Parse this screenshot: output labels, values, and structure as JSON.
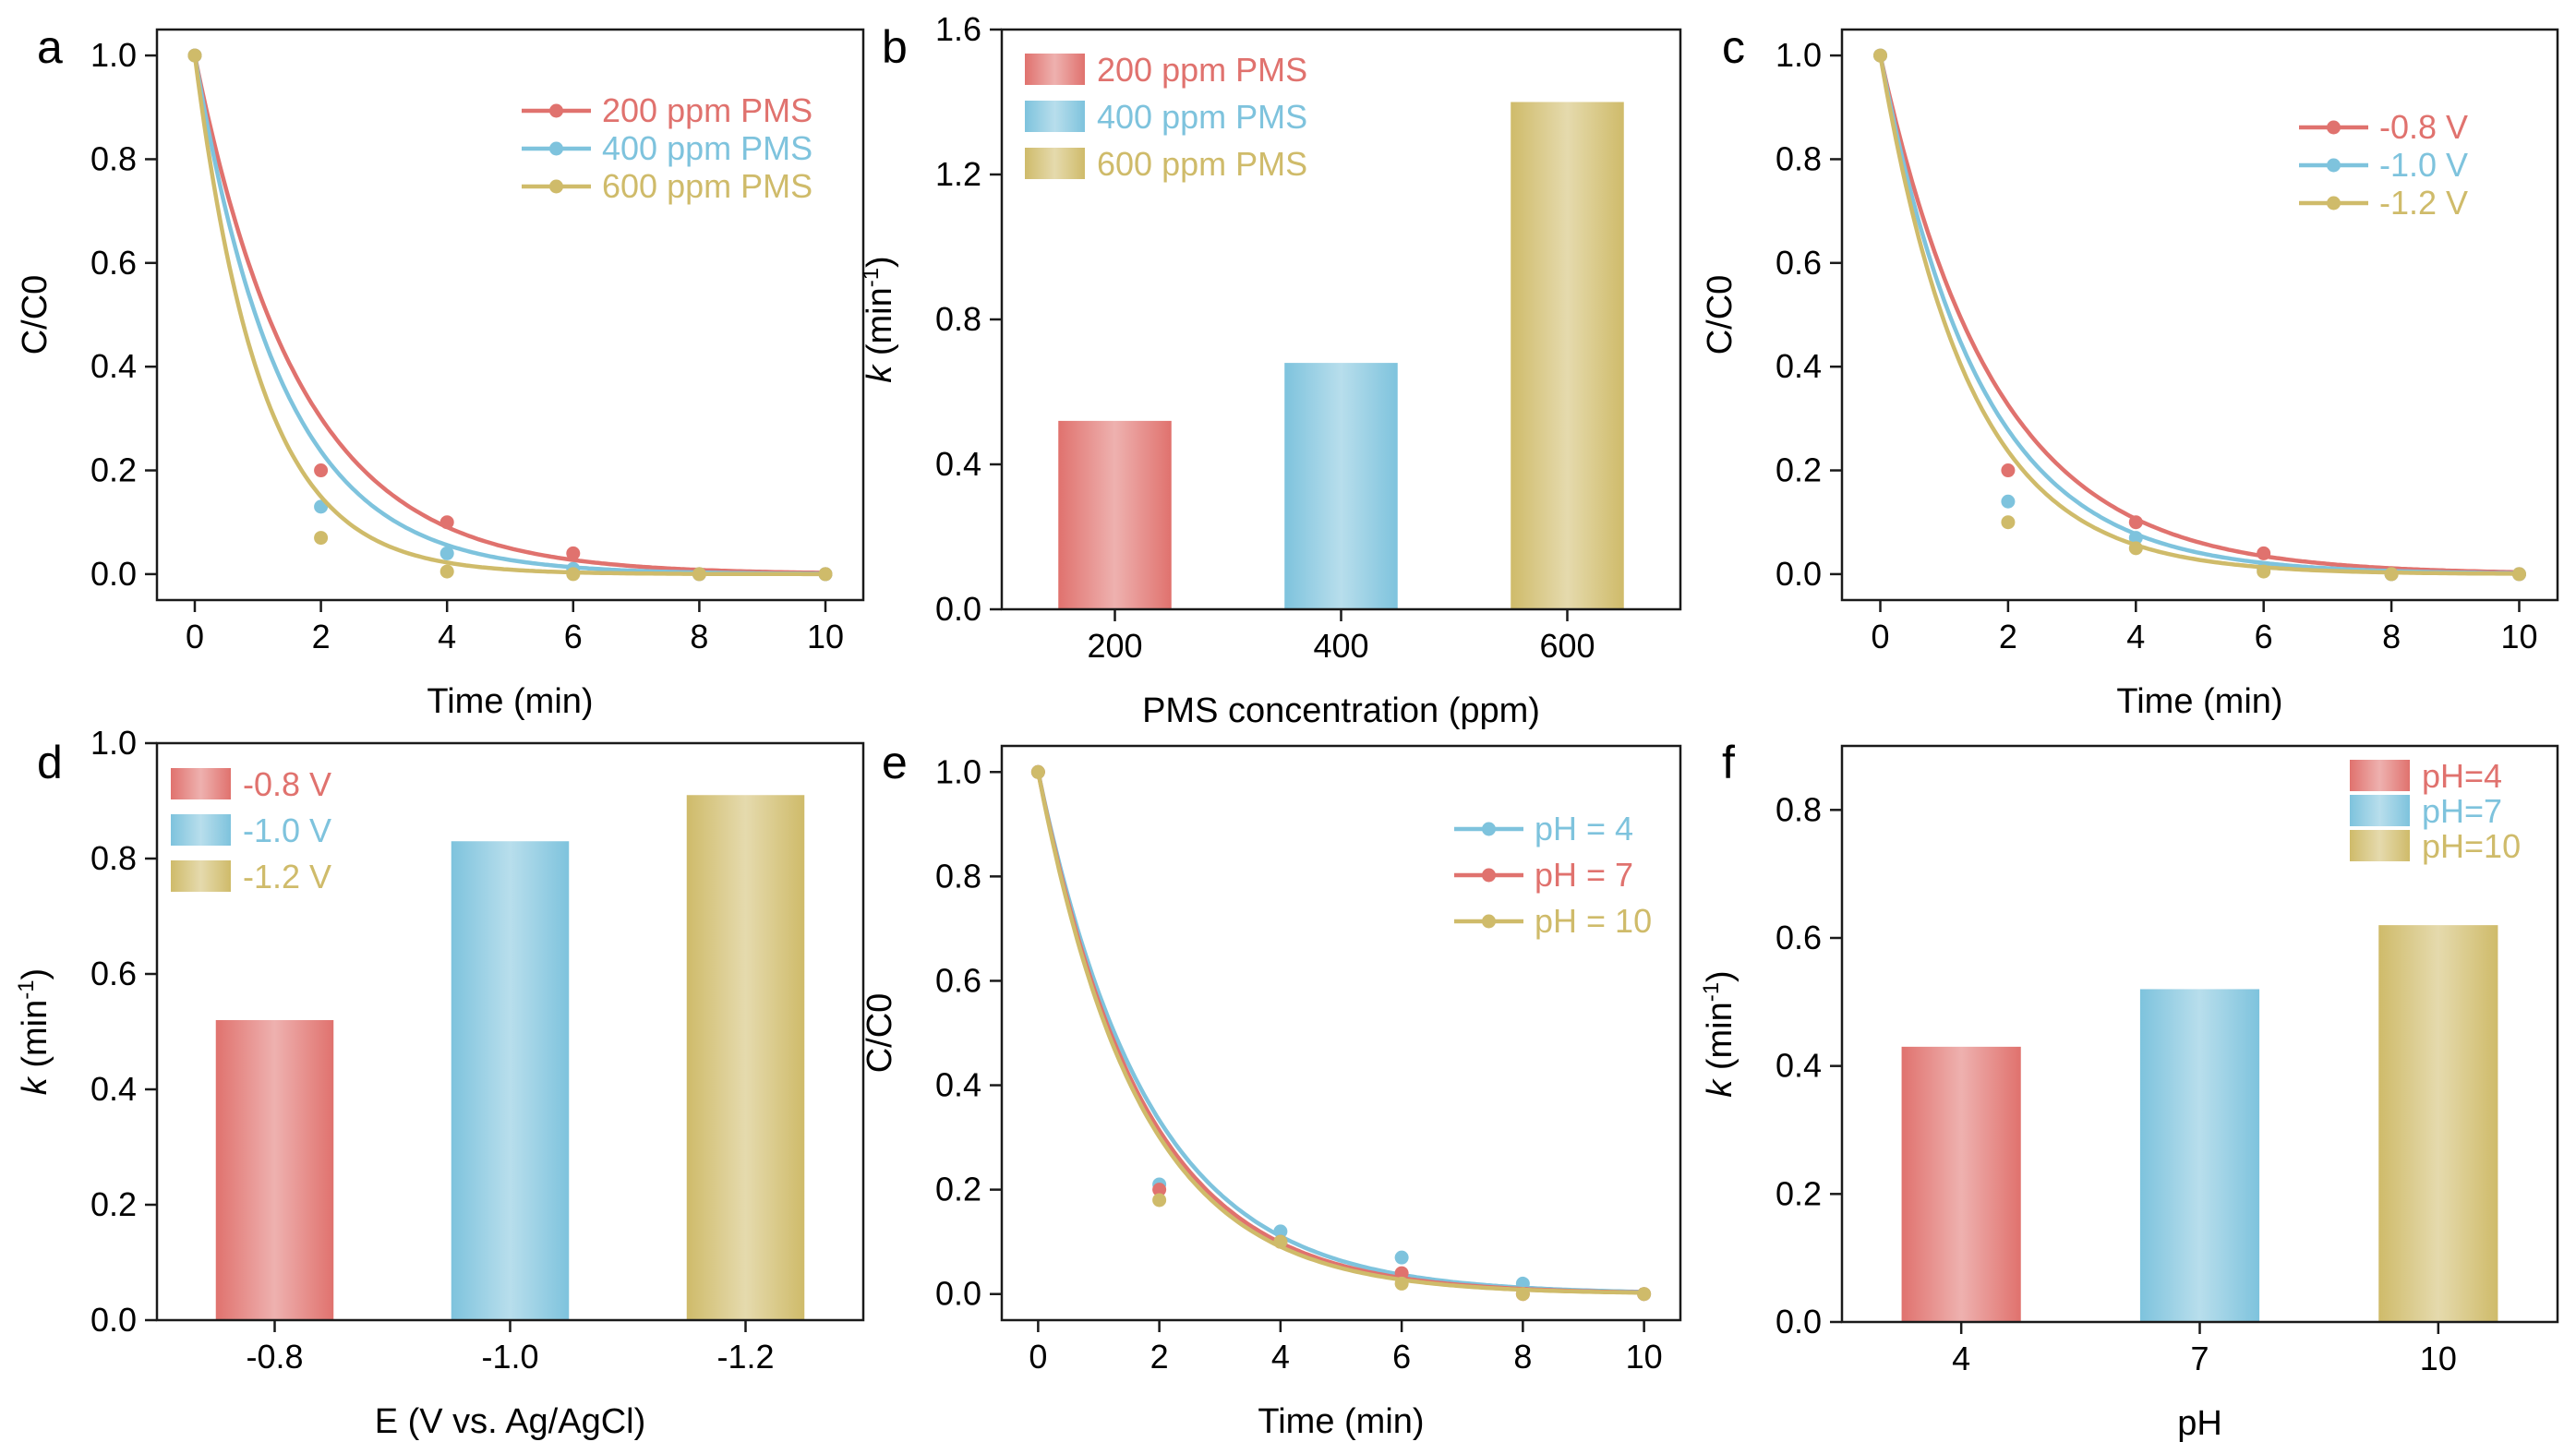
{
  "colors": {
    "red": "#e0726e",
    "blue": "#7ec3dd",
    "yellow": "#cfbb6a"
  },
  "chart_data": [
    {
      "panel": "a",
      "type": "line",
      "title": "",
      "xlabel": "Time (min)",
      "ylabel": "C/C0",
      "xlim": [
        -0.6,
        10.6
      ],
      "ylim": [
        -0.05,
        1.05
      ],
      "xticks": [
        "0",
        "2",
        "4",
        "6",
        "8",
        "10"
      ],
      "xtick_values": [
        0,
        2,
        4,
        6,
        8,
        10
      ],
      "yticks": [
        "0.0",
        "0.2",
        "0.4",
        "0.6",
        "0.8",
        "1.0"
      ],
      "ytick_values": [
        0,
        0.2,
        0.4,
        0.6,
        0.8,
        1.0
      ],
      "legend_position": "top-right",
      "series": [
        {
          "name": "200 ppm PMS",
          "color": "red",
          "x": [
            0,
            2,
            4,
            6,
            8,
            10
          ],
          "y": [
            1.0,
            0.2,
            0.1,
            0.04,
            0.0,
            0.0
          ],
          "k": 0.6
        },
        {
          "name": "400 ppm PMS",
          "color": "blue",
          "x": [
            0,
            2,
            4,
            6,
            8,
            10
          ],
          "y": [
            1.0,
            0.13,
            0.04,
            0.01,
            0.0,
            0.0
          ],
          "k": 0.72
        },
        {
          "name": "600 ppm PMS",
          "color": "yellow",
          "x": [
            0,
            2,
            4,
            6,
            8,
            10
          ],
          "y": [
            1.0,
            0.07,
            0.005,
            0.0,
            0.0,
            0.0
          ],
          "k": 0.95
        }
      ]
    },
    {
      "panel": "b",
      "type": "bar",
      "title": "",
      "xlabel": "PMS concentration (ppm)",
      "ylabel_italic": "k",
      "ylabel_unit": " (min",
      "ylabel_sup": "-1",
      "ylabel_close": ")",
      "ylim": [
        0,
        1.6
      ],
      "yticks": [
        "0.0",
        "0.4",
        "0.8",
        "1.2",
        "1.6"
      ],
      "ytick_values": [
        0,
        0.4,
        0.8,
        1.2,
        1.6
      ],
      "categories": [
        "200",
        "400",
        "600"
      ],
      "values": [
        0.52,
        0.68,
        1.4
      ],
      "colors": [
        "red",
        "blue",
        "yellow"
      ],
      "legend": [
        "200 ppm PMS",
        "400 ppm PMS",
        "600 ppm PMS"
      ],
      "legend_position": "top-left"
    },
    {
      "panel": "c",
      "type": "line",
      "title": "",
      "xlabel": "Time (min)",
      "ylabel": "C/C0",
      "xlim": [
        -0.6,
        10.6
      ],
      "ylim": [
        -0.05,
        1.05
      ],
      "xticks": [
        "0",
        "2",
        "4",
        "6",
        "8",
        "10"
      ],
      "xtick_values": [
        0,
        2,
        4,
        6,
        8,
        10
      ],
      "yticks": [
        "0.0",
        "0.2",
        "0.4",
        "0.6",
        "0.8",
        "1.0"
      ],
      "ytick_values": [
        0,
        0.2,
        0.4,
        0.6,
        0.8,
        1.0
      ],
      "legend_position": "top-right",
      "series": [
        {
          "name": "-0.8 V",
          "color": "red",
          "x": [
            0,
            2,
            4,
            6,
            8,
            10
          ],
          "y": [
            1.0,
            0.2,
            0.1,
            0.04,
            0.0,
            0.0
          ],
          "k": 0.56
        },
        {
          "name": "-1.0 V",
          "color": "blue",
          "x": [
            0,
            2,
            4,
            6,
            8,
            10
          ],
          "y": [
            1.0,
            0.14,
            0.07,
            0.01,
            0.0,
            0.0
          ],
          "k": 0.64
        },
        {
          "name": "-1.2 V",
          "color": "yellow",
          "x": [
            0,
            2,
            4,
            6,
            8,
            10
          ],
          "y": [
            1.0,
            0.1,
            0.05,
            0.005,
            0.0,
            0.0
          ],
          "k": 0.72
        }
      ]
    },
    {
      "panel": "d",
      "type": "bar",
      "title": "",
      "xlabel": "E (V vs. Ag/AgCl)",
      "ylabel_italic": "k",
      "ylabel_unit": " (min",
      "ylabel_sup": "-1",
      "ylabel_close": ")",
      "ylim": [
        0,
        1.0
      ],
      "yticks": [
        "0.0",
        "0.2",
        "0.4",
        "0.6",
        "0.8",
        "1.0"
      ],
      "ytick_values": [
        0,
        0.2,
        0.4,
        0.6,
        0.8,
        1.0
      ],
      "categories": [
        "-0.8",
        "-1.0",
        "-1.2"
      ],
      "values": [
        0.52,
        0.83,
        0.91
      ],
      "colors": [
        "red",
        "blue",
        "yellow"
      ],
      "legend": [
        "-0.8 V",
        "-1.0 V",
        "-1.2 V"
      ],
      "legend_position": "top-left"
    },
    {
      "panel": "e",
      "type": "line",
      "title": "",
      "xlabel": "Time (min)",
      "ylabel": "C/C0",
      "xlim": [
        -0.6,
        10.6
      ],
      "ylim": [
        -0.05,
        1.05
      ],
      "xticks": [
        "0",
        "2",
        "4",
        "6",
        "8",
        "10"
      ],
      "xtick_values": [
        0,
        2,
        4,
        6,
        8,
        10
      ],
      "yticks": [
        "0.0",
        "0.2",
        "0.4",
        "0.6",
        "0.8",
        "1.0"
      ],
      "ytick_values": [
        0,
        0.2,
        0.4,
        0.6,
        0.8,
        1.0
      ],
      "legend_position": "top-right",
      "series": [
        {
          "name": "pH = 4",
          "color": "blue",
          "x": [
            0,
            2,
            4,
            6,
            8,
            10
          ],
          "y": [
            1.0,
            0.21,
            0.12,
            0.07,
            0.02,
            0.0
          ],
          "k": 0.55
        },
        {
          "name": "pH = 7",
          "color": "red",
          "x": [
            0,
            2,
            4,
            6,
            8,
            10
          ],
          "y": [
            1.0,
            0.2,
            0.1,
            0.04,
            0.0,
            0.0
          ],
          "k": 0.58
        },
        {
          "name": "pH = 10",
          "color": "yellow",
          "x": [
            0,
            2,
            4,
            6,
            8,
            10
          ],
          "y": [
            1.0,
            0.18,
            0.1,
            0.02,
            0.0,
            0.0
          ],
          "k": 0.6
        }
      ]
    },
    {
      "panel": "f",
      "type": "bar",
      "title": "",
      "xlabel": "pH",
      "ylabel_italic": "k",
      "ylabel_unit": " (min",
      "ylabel_sup": "-1",
      "ylabel_close": ")",
      "ylim": [
        0,
        0.9
      ],
      "yticks": [
        "0.0",
        "0.2",
        "0.4",
        "0.6",
        "0.8"
      ],
      "ytick_values": [
        0,
        0.2,
        0.4,
        0.6,
        0.8
      ],
      "categories": [
        "4",
        "7",
        "10"
      ],
      "values": [
        0.43,
        0.52,
        0.62
      ],
      "colors": [
        "red",
        "blue",
        "yellow"
      ],
      "legend": [
        "pH=4",
        "pH=7",
        "pH=10"
      ],
      "legend_position": "top-right"
    }
  ]
}
